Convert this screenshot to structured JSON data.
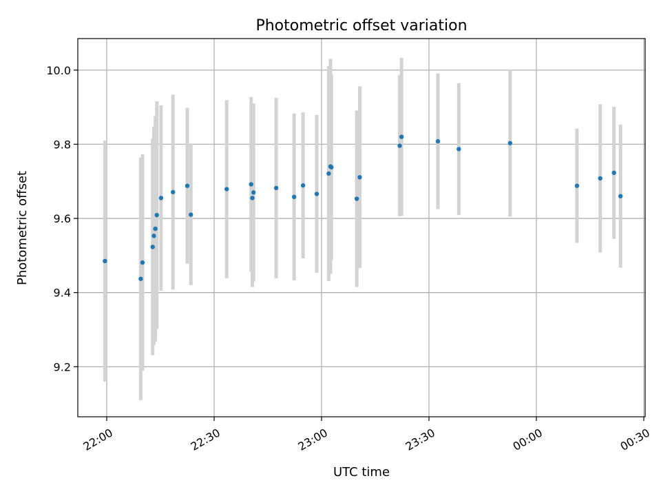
{
  "chart_data": {
    "type": "scatter",
    "title": "Photometric offset variation",
    "xlabel": "UTC time",
    "ylabel": "Photometric offset",
    "x_ticks": [
      "22:00",
      "22:30",
      "23:00",
      "23:30",
      "00:00",
      "00:30"
    ],
    "y_ticks": [
      "9.2",
      "9.4",
      "9.6",
      "9.8",
      "10.0"
    ],
    "x_range": [
      "21:52",
      "00:30"
    ],
    "ylim": [
      9.065,
      10.085
    ],
    "grid": true,
    "colors": {
      "points": "#1f77b4",
      "error_bars": "#d3d3d3",
      "grid": "#b0b0b0"
    },
    "points": [
      {
        "x": "21:59:30",
        "y": 9.485,
        "err": 0.325
      },
      {
        "x": "22:09:30",
        "y": 9.437,
        "err": 0.327
      },
      {
        "x": "22:10:00",
        "y": 9.481,
        "err": 0.292
      },
      {
        "x": "22:12:50",
        "y": 9.523,
        "err": 0.292
      },
      {
        "x": "22:13:10",
        "y": 9.553,
        "err": 0.294
      },
      {
        "x": "22:13:35",
        "y": 9.572,
        "err": 0.304
      },
      {
        "x": "22:14:00",
        "y": 9.609,
        "err": 0.307
      },
      {
        "x": "22:15:10",
        "y": 9.655,
        "err": 0.25
      },
      {
        "x": "22:18:30",
        "y": 9.671,
        "err": 0.263
      },
      {
        "x": "22:22:30",
        "y": 9.688,
        "err": 0.21
      },
      {
        "x": "22:23:30",
        "y": 9.61,
        "err": 0.19
      },
      {
        "x": "22:33:30",
        "y": 9.679,
        "err": 0.24
      },
      {
        "x": "22:40:20",
        "y": 9.692,
        "err": 0.235
      },
      {
        "x": "22:40:40",
        "y": 9.655,
        "err": 0.24
      },
      {
        "x": "22:41:00",
        "y": 9.67,
        "err": 0.24
      },
      {
        "x": "22:47:20",
        "y": 9.682,
        "err": 0.243
      },
      {
        "x": "22:52:20",
        "y": 9.658,
        "err": 0.225
      },
      {
        "x": "22:54:50",
        "y": 9.689,
        "err": 0.197
      },
      {
        "x": "22:58:40",
        "y": 9.666,
        "err": 0.213
      },
      {
        "x": "23:02:00",
        "y": 9.721,
        "err": 0.29
      },
      {
        "x": "23:02:30",
        "y": 9.74,
        "err": 0.29
      },
      {
        "x": "23:02:45",
        "y": 9.738,
        "err": 0.25
      },
      {
        "x": "23:09:50",
        "y": 9.653,
        "err": 0.238
      },
      {
        "x": "23:10:40",
        "y": 9.711,
        "err": 0.245
      },
      {
        "x": "23:21:50",
        "y": 9.796,
        "err": 0.19
      },
      {
        "x": "23:22:20",
        "y": 9.82,
        "err": 0.213
      },
      {
        "x": "23:32:30",
        "y": 9.808,
        "err": 0.183
      },
      {
        "x": "23:38:20",
        "y": 9.787,
        "err": 0.178
      },
      {
        "x": "23:52:40",
        "y": 9.803,
        "err": 0.198
      },
      {
        "x": "00:11:20",
        "y": 9.688,
        "err": 0.154
      },
      {
        "x": "00:17:50",
        "y": 9.708,
        "err": 0.2
      },
      {
        "x": "00:21:40",
        "y": 9.723,
        "err": 0.178
      },
      {
        "x": "00:23:30",
        "y": 9.66,
        "err": 0.193
      }
    ]
  }
}
